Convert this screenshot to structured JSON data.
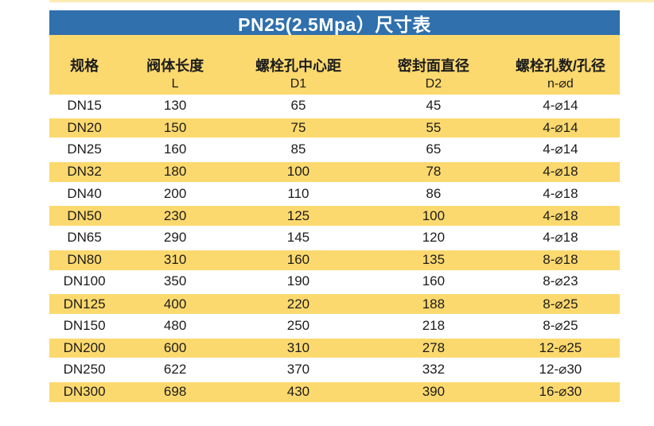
{
  "table": {
    "title": "PN25(2.5Mpa）尺寸表",
    "columns": [
      {
        "label": "规格",
        "sub": ""
      },
      {
        "label": "阀体长度",
        "sub": "L"
      },
      {
        "label": "螺栓孔中心距",
        "sub": "D1"
      },
      {
        "label": "密封面直径",
        "sub": "D2"
      },
      {
        "label": "螺栓孔数/孔径",
        "sub": "n-⌀d"
      }
    ],
    "rows": [
      [
        "DN15",
        "130",
        "65",
        "45",
        "4-⌀14"
      ],
      [
        "DN20",
        "150",
        "75",
        "55",
        "4-⌀14"
      ],
      [
        "DN25",
        "160",
        "85",
        "65",
        "4-⌀14"
      ],
      [
        "DN32",
        "180",
        "100",
        "78",
        "4-⌀18"
      ],
      [
        "DN40",
        "200",
        "110",
        "86",
        "4-⌀18"
      ],
      [
        "DN50",
        "230",
        "125",
        "100",
        "4-⌀18"
      ],
      [
        "DN65",
        "290",
        "145",
        "120",
        "4-⌀18"
      ],
      [
        "DN80",
        "310",
        "160",
        "135",
        "8-⌀18"
      ],
      [
        "DN100",
        "350",
        "190",
        "160",
        "8-⌀23"
      ],
      [
        "DN125",
        "400",
        "220",
        "188",
        "8-⌀25"
      ],
      [
        "DN150",
        "480",
        "250",
        "218",
        "8-⌀25"
      ],
      [
        "DN200",
        "600",
        "310",
        "278",
        "12-⌀25"
      ],
      [
        "DN250",
        "622",
        "370",
        "332",
        "12-⌀30"
      ],
      [
        "DN300",
        "698",
        "430",
        "390",
        "16-⌀30"
      ]
    ]
  },
  "colors": {
    "header_blue": "#2f70ad",
    "stripe_yellow": "#fcd96e",
    "title_text": "#ffffff",
    "body_text": "#1c1c1c"
  }
}
